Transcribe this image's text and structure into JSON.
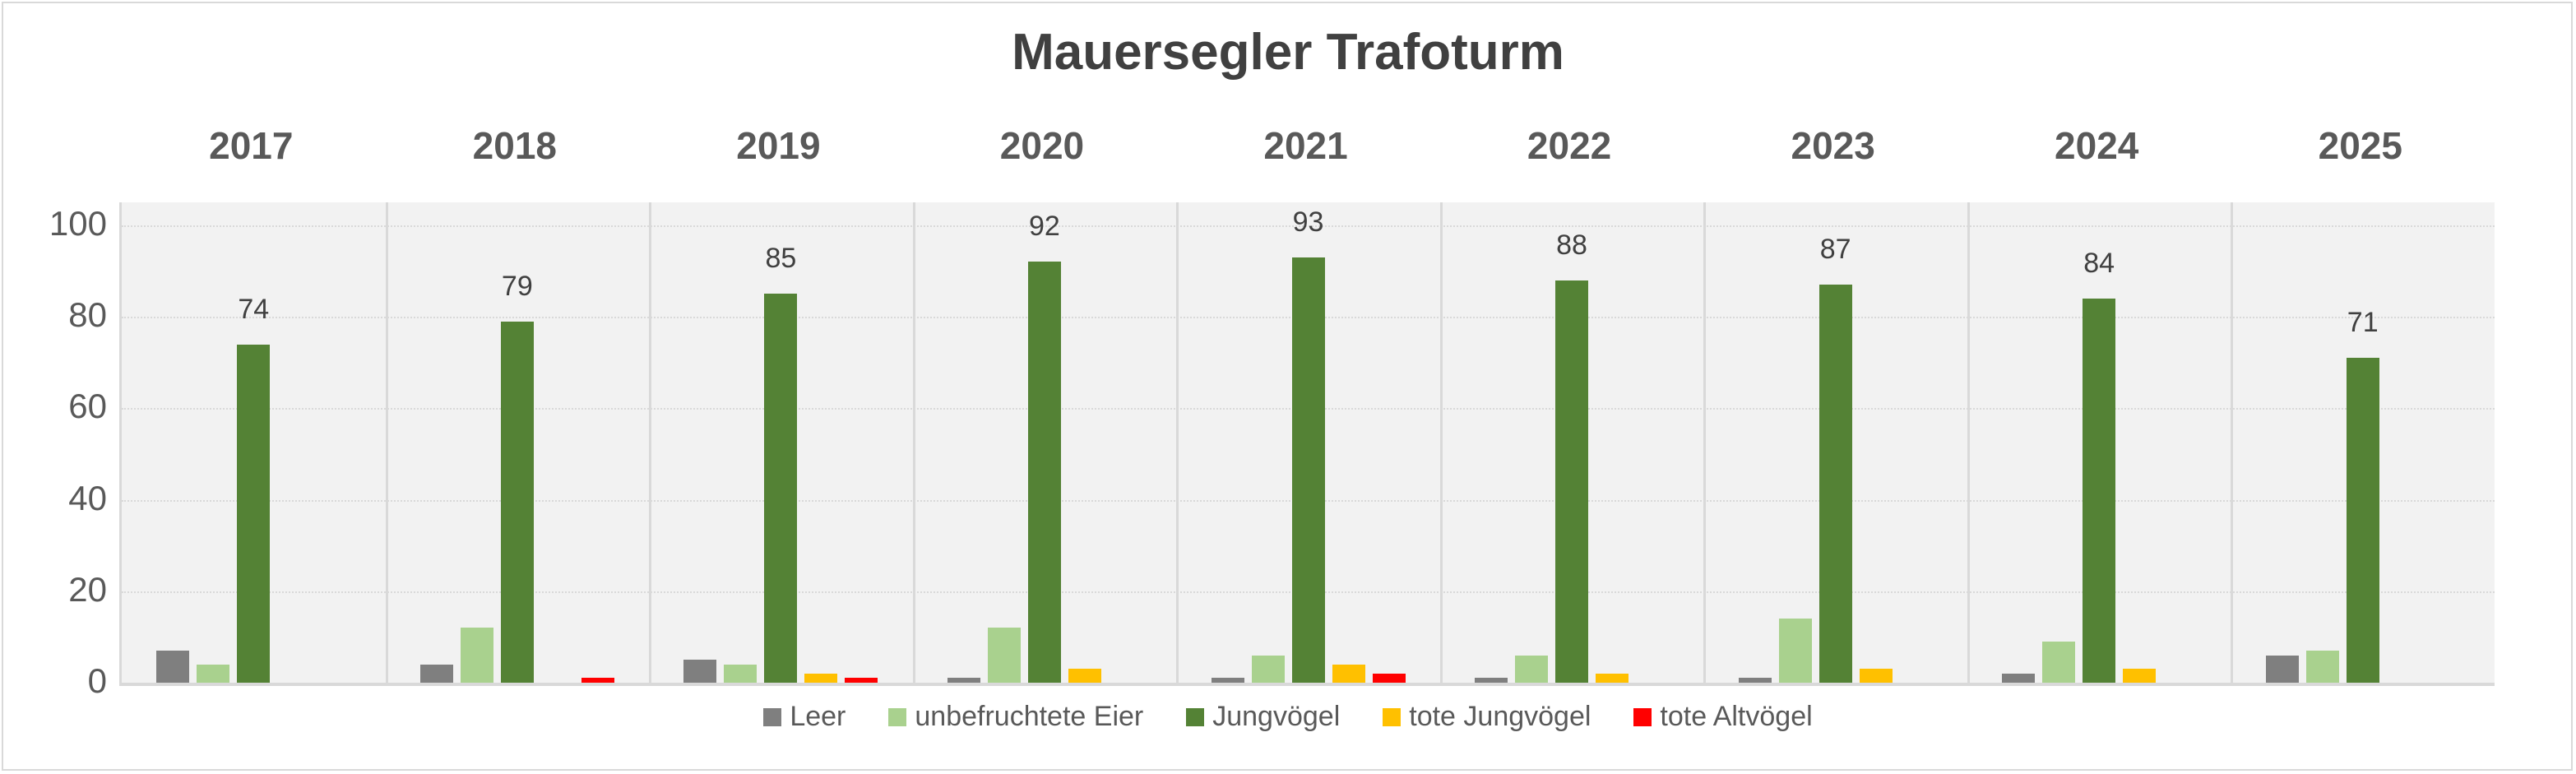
{
  "chart_data": {
    "type": "bar",
    "title": "Mauersegler Trafoturm",
    "categories": [
      "2017",
      "2018",
      "2019",
      "2020",
      "2021",
      "2022",
      "2023",
      "2024",
      "2025"
    ],
    "xlabel": "",
    "ylabel": "",
    "ylim": [
      0,
      100
    ],
    "yticks": [
      0,
      20,
      40,
      60,
      80,
      100
    ],
    "grid": true,
    "legend_position": "bottom",
    "series": [
      {
        "name": "Leer",
        "color": "#7f7f7f",
        "values": [
          7,
          4,
          5,
          1,
          1,
          1,
          1,
          2,
          6
        ]
      },
      {
        "name": "unbefruchtete Eier",
        "color": "#a9d18e",
        "values": [
          4,
          12,
          4,
          12,
          6,
          6,
          14,
          9,
          7
        ]
      },
      {
        "name": "Jungvögel",
        "color": "#548235",
        "values": [
          74,
          79,
          85,
          92,
          93,
          88,
          87,
          84,
          71
        ],
        "data_labels": true
      },
      {
        "name": "tote Jungvögel",
        "color": "#ffc000",
        "values": [
          0,
          0,
          2,
          3,
          4,
          2,
          3,
          3,
          0
        ]
      },
      {
        "name": "tote Altvögel",
        "color": "#ff0000",
        "values": [
          0,
          1,
          1,
          0,
          2,
          0,
          0,
          0,
          0
        ]
      }
    ]
  },
  "title": "Mauersegler Trafoturm",
  "years": [
    "2017",
    "2018",
    "2019",
    "2020",
    "2021",
    "2022",
    "2023",
    "2024",
    "2025"
  ],
  "yticks": [
    "0",
    "20",
    "40",
    "60",
    "80",
    "100"
  ],
  "legend": [
    "Leer",
    "unbefruchtete Eier",
    "Jungvögel",
    "tote Jungvögel",
    "tote Altvögel"
  ]
}
